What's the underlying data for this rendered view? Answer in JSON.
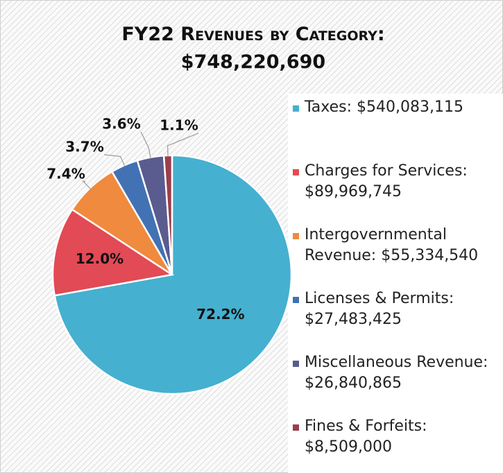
{
  "chart_data": {
    "type": "pie",
    "title": "FY22 Revenues by Category:",
    "subtitle": "$748,220,690",
    "categories": [
      "Taxes: $540,083,115",
      "Charges for Services: $89,969,745",
      "Intergovernmental Revenue: $55,334,540",
      "Licenses & Permits: $27,483,425",
      "Miscellaneous Revenue: $26,840,865",
      "Fines & Forfeits: $8,509,000"
    ],
    "values": [
      72.2,
      12.0,
      7.4,
      3.7,
      3.6,
      1.1
    ],
    "value_labels": [
      "72.2%",
      "12.0%",
      "7.4%",
      "3.7%",
      "3.6%",
      "1.1%"
    ],
    "colors": [
      "#45b0d0",
      "#e24a55",
      "#ef8a3e",
      "#4272b4",
      "#5a5b8f",
      "#9c3d4c"
    ]
  }
}
